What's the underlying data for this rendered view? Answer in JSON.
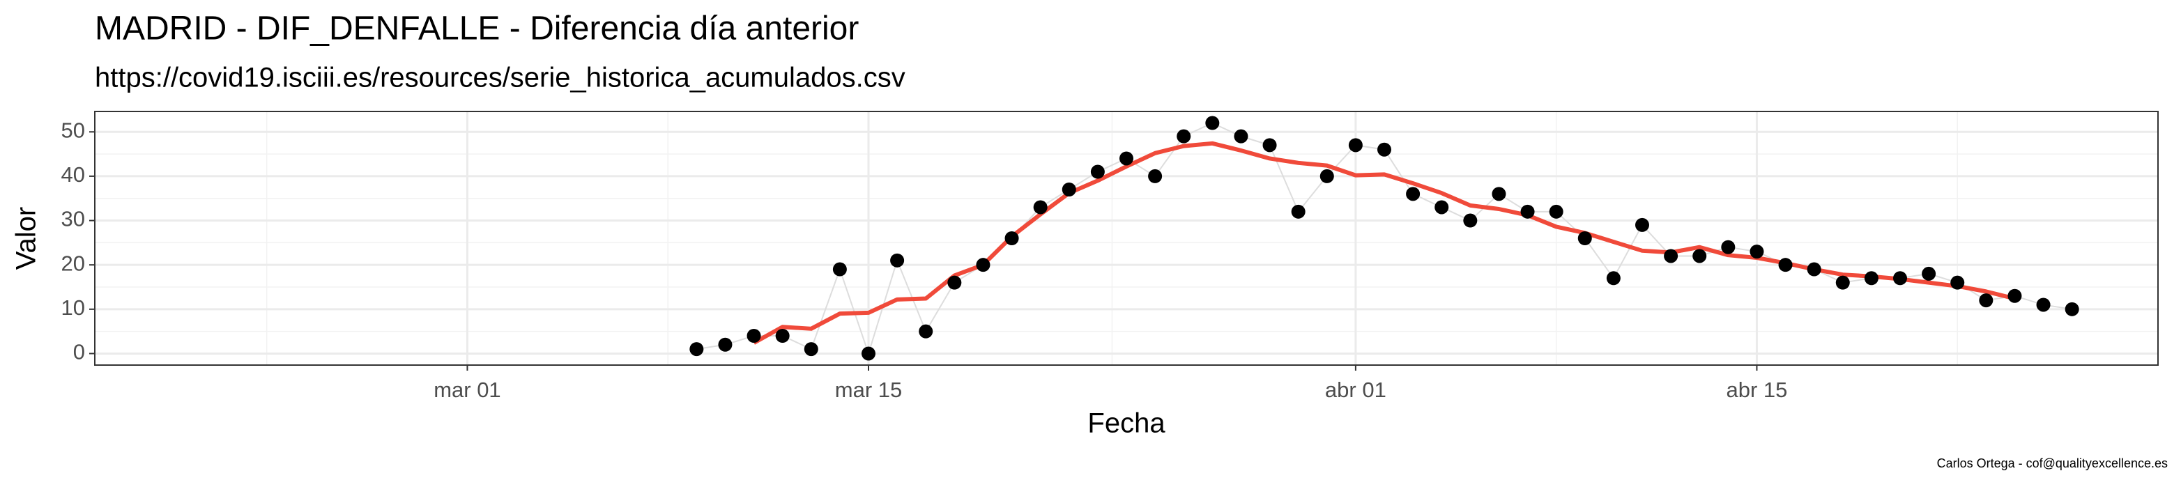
{
  "chart_data": {
    "type": "line",
    "title": "MADRID - DIF_DENFALLE - Diferencia día anterior",
    "subtitle": "https://covid19.isciii.es/resources/serie_historica_acumulados.csv",
    "xlabel": "Fecha",
    "ylabel": "Valor",
    "caption": "Carlos Ortega - cof@qualityexcellence.es",
    "x": [
      "03-09",
      "03-10",
      "03-11",
      "03-12",
      "03-13",
      "03-14",
      "03-15",
      "03-16",
      "03-17",
      "03-18",
      "03-19",
      "03-20",
      "03-21",
      "03-22",
      "03-23",
      "03-24",
      "03-25",
      "03-26",
      "03-27",
      "03-28",
      "03-29",
      "03-30",
      "03-31",
      "04-01",
      "04-02",
      "04-03",
      "04-04",
      "04-05",
      "04-06",
      "04-07",
      "04-08",
      "04-09",
      "04-10",
      "04-11",
      "04-12",
      "04-13",
      "04-14",
      "04-15",
      "04-16",
      "04-17",
      "04-18",
      "04-19",
      "04-20",
      "04-21",
      "04-22",
      "04-23",
      "04-24",
      "04-25",
      "04-26"
    ],
    "series": [
      {
        "style": "points",
        "color": "#000000",
        "line_color": "#dddddd",
        "values": [
          1,
          2,
          4,
          4,
          1,
          19,
          0,
          21,
          5,
          16,
          20,
          26,
          33,
          37,
          41,
          44,
          40,
          49,
          52,
          49,
          47,
          32,
          40,
          47,
          46,
          36,
          33,
          30,
          36,
          32,
          32,
          26,
          17,
          29,
          22,
          22,
          24,
          23,
          20,
          19,
          16,
          17,
          17,
          18,
          16,
          12,
          13,
          11,
          10
        ]
      },
      {
        "style": "line",
        "color": "#f04a3a",
        "values": [
          null,
          null,
          2.4,
          6,
          5.6,
          9,
          9.2,
          12.2,
          12.4,
          17.6,
          20,
          26.4,
          31.4,
          36.2,
          39,
          42.2,
          45.2,
          46.8,
          47.4,
          45.8,
          44,
          43,
          42.4,
          40.2,
          40.4,
          38.4,
          36.2,
          33.4,
          32.6,
          31.2,
          28.6,
          27.2,
          25.2,
          23.2,
          22.8,
          24,
          22.2,
          21.6,
          20.4,
          19,
          17.8,
          17.4,
          16.8,
          16,
          15.2,
          14,
          12.4,
          null,
          null
        ]
      }
    ],
    "xlim": [
      "02-17",
      "04-29"
    ],
    "xticks": [
      {
        "value": "03-01",
        "label": "mar 01"
      },
      {
        "value": "03-15",
        "label": "mar 15"
      },
      {
        "value": "04-01",
        "label": "abr 01"
      },
      {
        "value": "04-15",
        "label": "abr 15"
      }
    ],
    "ylim": [
      -2.6,
      54.6
    ],
    "yticks": [
      0,
      10,
      20,
      30,
      40,
      50
    ],
    "grid": true
  }
}
